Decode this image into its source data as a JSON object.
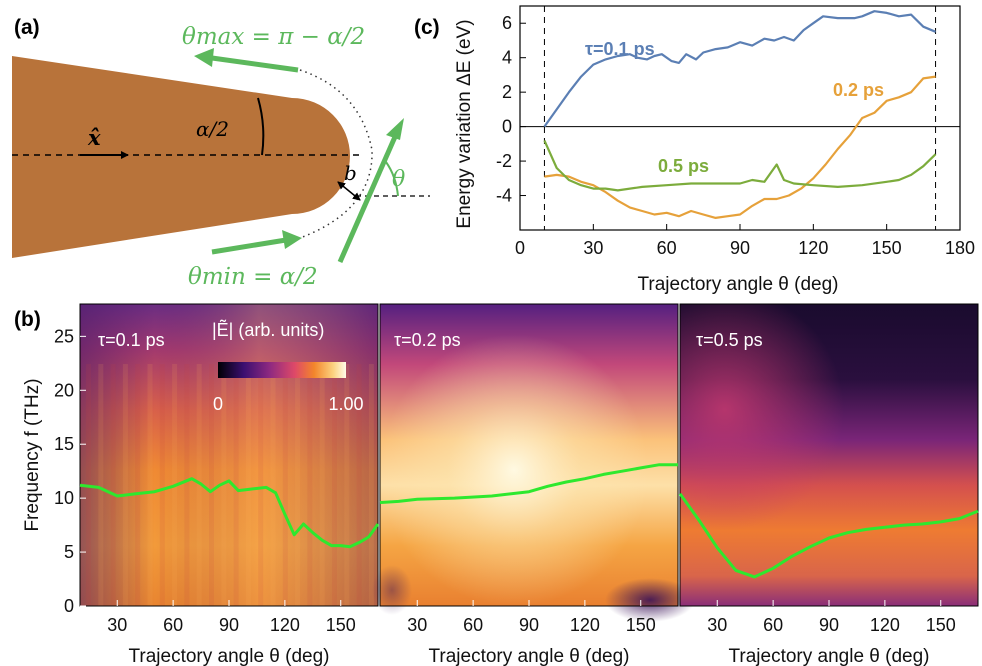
{
  "panels": {
    "a": "(a)",
    "b": "(b)",
    "c": "(c)"
  },
  "schematic": {
    "x_hat": "x̂",
    "half_angle": "α/2",
    "impact": "b",
    "theta": "θ",
    "theta_max": "θmax = π − α/2",
    "theta_min": "θmin = α/2",
    "colors": {
      "tip": "#b8733a",
      "arrow": "#5cb85c"
    }
  },
  "chart_data": [
    {
      "type": "line",
      "panel": "c",
      "xlabel": "Trajectory angle θ (deg)",
      "ylabel": "Energy variation ΔE (eV)",
      "xlim": [
        0,
        180
      ],
      "ylim": [
        -6,
        7
      ],
      "xticks": [
        "0",
        "30",
        "60",
        "90",
        "120",
        "150",
        "180"
      ],
      "yticks": [
        "-4",
        "-2",
        "0",
        "2",
        "4",
        "6"
      ],
      "markers": [
        10,
        170
      ],
      "series": [
        {
          "name": "τ=0.1 ps",
          "color": "#5b7fb4",
          "points": [
            [
              10,
              0
            ],
            [
              15,
              1
            ],
            [
              20,
              2
            ],
            [
              25,
              2.9
            ],
            [
              30,
              3.6
            ],
            [
              35,
              3.9
            ],
            [
              40,
              4.1
            ],
            [
              45,
              4.2
            ],
            [
              48,
              4
            ],
            [
              52,
              3.9
            ],
            [
              55,
              4.1
            ],
            [
              58,
              4.2
            ],
            [
              62,
              3.8
            ],
            [
              65,
              3.7
            ],
            [
              68,
              4.2
            ],
            [
              72,
              3.9
            ],
            [
              75,
              4.3
            ],
            [
              80,
              4.5
            ],
            [
              85,
              4.6
            ],
            [
              90,
              4.9
            ],
            [
              95,
              4.7
            ],
            [
              100,
              5.1
            ],
            [
              104,
              5
            ],
            [
              108,
              5.2
            ],
            [
              112,
              5
            ],
            [
              116,
              5.6
            ],
            [
              120,
              6
            ],
            [
              124,
              6.4
            ],
            [
              130,
              6.3
            ],
            [
              137,
              6.3
            ],
            [
              140,
              6.4
            ],
            [
              145,
              6.7
            ],
            [
              150,
              6.6
            ],
            [
              155,
              6.4
            ],
            [
              160,
              6.5
            ],
            [
              165,
              5.8
            ],
            [
              170,
              5.5
            ]
          ]
        },
        {
          "name": "0.2 ps",
          "color": "#e6a13a",
          "points": [
            [
              10,
              -2.9
            ],
            [
              15,
              -2.8
            ],
            [
              20,
              -2.9
            ],
            [
              25,
              -3.2
            ],
            [
              30,
              -3.4
            ],
            [
              35,
              -3.8
            ],
            [
              40,
              -4.3
            ],
            [
              45,
              -4.7
            ],
            [
              50,
              -4.9
            ],
            [
              55,
              -5.1
            ],
            [
              60,
              -5
            ],
            [
              65,
              -5.2
            ],
            [
              70,
              -4.9
            ],
            [
              75,
              -5.1
            ],
            [
              80,
              -5.3
            ],
            [
              85,
              -5.2
            ],
            [
              90,
              -5.1
            ],
            [
              95,
              -4.6
            ],
            [
              100,
              -4.2
            ],
            [
              105,
              -4.2
            ],
            [
              110,
              -4
            ],
            [
              115,
              -3.6
            ],
            [
              120,
              -3
            ],
            [
              125,
              -2.2
            ],
            [
              130,
              -1.3
            ],
            [
              135,
              -0.5
            ],
            [
              140,
              0.5
            ],
            [
              145,
              0.8
            ],
            [
              150,
              1.5
            ],
            [
              155,
              1.7
            ],
            [
              160,
              2
            ],
            [
              165,
              2.8
            ],
            [
              170,
              2.9
            ]
          ]
        },
        {
          "name": "0.5 ps",
          "color": "#7cac3c",
          "points": [
            [
              10,
              -0.8
            ],
            [
              15,
              -2.4
            ],
            [
              20,
              -3.1
            ],
            [
              25,
              -3.4
            ],
            [
              30,
              -3.6
            ],
            [
              35,
              -3.6
            ],
            [
              40,
              -3.7
            ],
            [
              50,
              -3.5
            ],
            [
              60,
              -3.4
            ],
            [
              70,
              -3.3
            ],
            [
              80,
              -3.3
            ],
            [
              90,
              -3.3
            ],
            [
              95,
              -3.1
            ],
            [
              100,
              -3.2
            ],
            [
              103,
              -2.6
            ],
            [
              105,
              -2.2
            ],
            [
              108,
              -3.1
            ],
            [
              112,
              -3.3
            ],
            [
              120,
              -3.4
            ],
            [
              130,
              -3.5
            ],
            [
              140,
              -3.4
            ],
            [
              150,
              -3.2
            ],
            [
              155,
              -3.1
            ],
            [
              160,
              -2.8
            ],
            [
              165,
              -2.3
            ],
            [
              170,
              -1.6
            ]
          ]
        }
      ]
    },
    {
      "type": "heatmap",
      "panel": "b",
      "xlabel": "Trajectory angle θ (deg)",
      "ylabel": "Frequency f (THz)",
      "xlim": [
        10,
        170
      ],
      "ylim": [
        0,
        28
      ],
      "xticks": [
        "30",
        "60",
        "90",
        "120",
        "150"
      ],
      "yticks": [
        "0",
        "5",
        "10",
        "15",
        "20",
        "25"
      ],
      "colorbar": {
        "label": "|Ẽ| (arb. units)",
        "min": "0",
        "max": "1.00"
      },
      "line_color": "#2ee82e",
      "maps": [
        {
          "name": "τ=0.1 ps",
          "peak_line": [
            [
              10,
              11.2
            ],
            [
              20,
              11
            ],
            [
              30,
              10.2
            ],
            [
              40,
              10.4
            ],
            [
              50,
              10.6
            ],
            [
              60,
              11.1
            ],
            [
              70,
              11.8
            ],
            [
              75,
              11.3
            ],
            [
              80,
              10.6
            ],
            [
              85,
              11.2
            ],
            [
              90,
              11.6
            ],
            [
              95,
              10.7
            ],
            [
              100,
              10.8
            ],
            [
              110,
              11
            ],
            [
              115,
              10.5
            ],
            [
              120,
              8.5
            ],
            [
              125,
              6.6
            ],
            [
              130,
              7.6
            ],
            [
              135,
              6.8
            ],
            [
              140,
              6.1
            ],
            [
              145,
              5.6
            ],
            [
              150,
              5.6
            ],
            [
              155,
              5.5
            ],
            [
              160,
              5.9
            ],
            [
              165,
              6.4
            ],
            [
              170,
              7.6
            ]
          ]
        },
        {
          "name": "τ=0.2 ps",
          "peak_line": [
            [
              10,
              9.6
            ],
            [
              20,
              9.7
            ],
            [
              30,
              9.9
            ],
            [
              50,
              10
            ],
            [
              70,
              10.2
            ],
            [
              90,
              10.6
            ],
            [
              100,
              11.1
            ],
            [
              110,
              11.5
            ],
            [
              120,
              11.8
            ],
            [
              130,
              12.2
            ],
            [
              140,
              12.5
            ],
            [
              150,
              12.8
            ],
            [
              160,
              13.1
            ],
            [
              170,
              13.1
            ]
          ]
        },
        {
          "name": "τ=0.5 ps",
          "peak_line": [
            [
              10,
              10.4
            ],
            [
              20,
              8
            ],
            [
              30,
              5.4
            ],
            [
              40,
              3.3
            ],
            [
              50,
              2.7
            ],
            [
              60,
              3.5
            ],
            [
              70,
              4.6
            ],
            [
              80,
              5.5
            ],
            [
              90,
              6.3
            ],
            [
              100,
              6.8
            ],
            [
              110,
              7.1
            ],
            [
              120,
              7.3
            ],
            [
              130,
              7.5
            ],
            [
              140,
              7.6
            ],
            [
              150,
              7.8
            ],
            [
              160,
              8.1
            ],
            [
              170,
              8.8
            ]
          ]
        }
      ]
    }
  ]
}
